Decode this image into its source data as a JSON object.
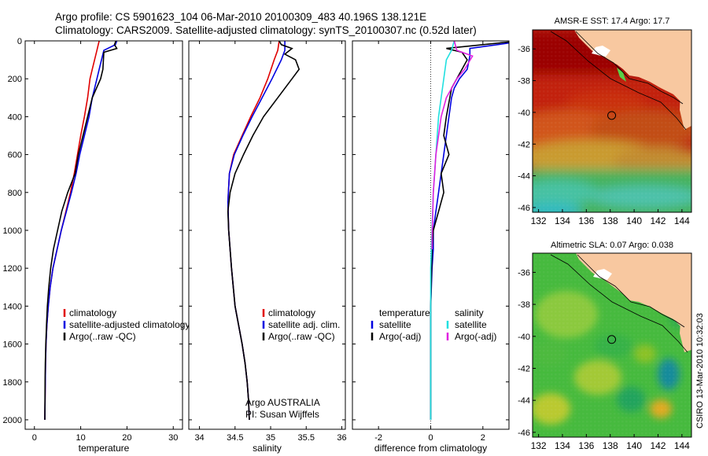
{
  "header": {
    "line1": "Argo profile: CS 5901623_104 06-Mar-2010 20100309_483 40.196S 138.121E",
    "line2": "Climatology: CARS2009. Satellite-adjusted climatology: synTS_20100307.nc (0.52d later)"
  },
  "side_credit": "CSIRO 13-Mar-2010 10:32:03",
  "colors": {
    "climatology": "#e00000",
    "satellite": "#0000e0",
    "argo": "#000000",
    "satellite_salinity": "#20e0e0",
    "argo_salinity": "#e020e0"
  },
  "chart_data": [
    {
      "type": "line",
      "xlabel": "temperature",
      "ylabel": "",
      "xlim": [
        -2,
        32
      ],
      "ylim": [
        0,
        2050
      ],
      "y_inverted": true,
      "xticks": [
        0,
        10,
        20,
        30
      ],
      "yticks": [
        0,
        200,
        400,
        600,
        800,
        1000,
        1200,
        1400,
        1600,
        1800,
        2000
      ],
      "legend": "center-right",
      "series": [
        {
          "name": "climatology",
          "color": "#e00000",
          "x": [
            14.0,
            13.8,
            13.5,
            12.5,
            12.0,
            11.5,
            10.8,
            10.0,
            9.3,
            8.6,
            7.8,
            6.8,
            5.8,
            4.9,
            4.0,
            3.4,
            3.0,
            2.7,
            2.5,
            2.4,
            2.35,
            2.3,
            2.25
          ],
          "y": [
            0,
            20,
            50,
            150,
            200,
            300,
            400,
            500,
            600,
            700,
            800,
            900,
            1000,
            1100,
            1200,
            1300,
            1400,
            1500,
            1600,
            1700,
            1800,
            1900,
            2000
          ]
        },
        {
          "name": "satellite-adjusted climatology",
          "color": "#0000e0",
          "x": [
            17.8,
            17.5,
            15.0,
            14.0,
            13.5,
            12.5,
            11.8,
            10.8,
            9.8,
            9.0,
            8.0,
            6.9,
            5.8,
            4.9,
            4.0,
            3.4,
            3.0,
            2.7,
            2.5,
            2.4,
            2.35,
            2.3,
            2.25
          ],
          "y": [
            0,
            20,
            50,
            150,
            200,
            300,
            400,
            500,
            600,
            700,
            800,
            900,
            1000,
            1100,
            1200,
            1300,
            1400,
            1500,
            1600,
            1700,
            1800,
            1900,
            2000
          ]
        },
        {
          "name": "Argo(..raw -QC)",
          "color": "#000000",
          "x": [
            17.6,
            17.3,
            17.8,
            15.0,
            14.8,
            14.3,
            12.5,
            11.5,
            10.5,
            9.5,
            8.8,
            7.2,
            5.9,
            5.0,
            4.1,
            3.5,
            3.1,
            2.8,
            2.6,
            2.45,
            2.35,
            2.3,
            2.25
          ],
          "y": [
            0,
            20,
            40,
            60,
            150,
            200,
            300,
            400,
            500,
            600,
            700,
            800,
            900,
            1000,
            1100,
            1200,
            1300,
            1400,
            1500,
            1600,
            1700,
            1800,
            2000
          ]
        }
      ]
    },
    {
      "type": "line",
      "xlabel": "salinity",
      "ylabel": "",
      "xlim": [
        33.85,
        36.05
      ],
      "ylim": [
        0,
        2050
      ],
      "y_inverted": true,
      "xticks": [
        34,
        34.5,
        35,
        35.5,
        36
      ],
      "xtick_labels": [
        "34",
        "34.5",
        "35",
        "35.5",
        "36"
      ],
      "legend": "center-right",
      "annotation": [
        "Argo AUSTRALIA",
        "PI: Susan Wijffels"
      ],
      "series": [
        {
          "name": "climatology",
          "color": "#e00000",
          "x": [
            35.12,
            35.1,
            35.05,
            34.96,
            34.85,
            34.72,
            34.6,
            34.48,
            34.42,
            34.4,
            34.41,
            34.45,
            34.5,
            34.55,
            34.6,
            34.64,
            34.67,
            34.69,
            34.7
          ],
          "y": [
            0,
            50,
            100,
            200,
            300,
            400,
            500,
            600,
            700,
            850,
            1000,
            1200,
            1400,
            1500,
            1600,
            1700,
            1800,
            1900,
            2000
          ]
        },
        {
          "name": "satellite adj. clim.",
          "color": "#0000e0",
          "x": [
            35.2,
            35.2,
            35.15,
            35.02,
            34.88,
            34.74,
            34.61,
            34.49,
            34.42,
            34.4,
            34.41,
            34.45,
            34.5,
            34.55,
            34.6,
            34.64,
            34.67,
            34.69,
            34.7
          ],
          "y": [
            0,
            50,
            100,
            200,
            300,
            400,
            500,
            600,
            700,
            850,
            1000,
            1200,
            1400,
            1500,
            1600,
            1700,
            1800,
            1900,
            2000
          ]
        },
        {
          "name": "Argo(..raw -QC)",
          "color": "#000000",
          "x": [
            35.12,
            35.15,
            35.3,
            35.2,
            35.35,
            35.4,
            35.3,
            35.1,
            34.9,
            34.75,
            34.62,
            34.5,
            34.43,
            34.4,
            34.41,
            34.45,
            34.5,
            34.55,
            34.6,
            34.64,
            34.67,
            34.69,
            34.7
          ],
          "y": [
            0,
            20,
            40,
            70,
            100,
            150,
            200,
            300,
            400,
            500,
            600,
            700,
            800,
            900,
            1000,
            1200,
            1400,
            1500,
            1600,
            1700,
            1800,
            1900,
            2000
          ]
        }
      ]
    },
    {
      "type": "line",
      "xlabel": "difference from climatology",
      "ylabel": "",
      "xlim": [
        -3.0,
        3.0
      ],
      "ylim": [
        0,
        2050
      ],
      "y_inverted": true,
      "xticks": [
        -2,
        0,
        2
      ],
      "legend": "center-right",
      "legend_groups": [
        {
          "title": "temperature",
          "entries": [
            "satellite",
            "Argo(-adj)"
          ]
        },
        {
          "title": "salinity",
          "entries": [
            "satellite",
            "Argo(-adj)"
          ]
        }
      ],
      "series": [
        {
          "name": "satellite",
          "group": "temperature",
          "color": "#0000e0",
          "x": [
            3.6,
            1.5,
            1.5,
            1.4,
            1.1,
            0.9,
            0.8,
            0.6,
            0.4,
            0.3,
            0.2,
            0.1,
            0.1,
            0.05,
            0,
            0,
            0
          ],
          "y": [
            0,
            40,
            80,
            150,
            200,
            250,
            300,
            500,
            700,
            800,
            900,
            1000,
            1100,
            1200,
            1400,
            1700,
            2000
          ]
        },
        {
          "name": "Argo(-adj)",
          "group": "temperature",
          "color": "#000000",
          "x": [
            3.4,
            0.6,
            1.2,
            1.4,
            1.2,
            0.8,
            0.6,
            0.5,
            0.7,
            0.4,
            0.5,
            0.3,
            0.1,
            0.05,
            0,
            0
          ],
          "y": [
            0,
            40,
            60,
            100,
            150,
            250,
            400,
            500,
            600,
            700,
            800,
            900,
            1000,
            1100,
            1400,
            2000
          ]
        },
        {
          "name": "satellite",
          "group": "salinity",
          "color": "#20e0e0",
          "x": [
            0.9,
            0.8,
            0.6,
            0.5,
            0.4,
            0.3,
            0.2,
            0.1,
            0.05,
            0,
            0,
            0
          ],
          "y": [
            0,
            50,
            100,
            200,
            300,
            400,
            600,
            800,
            1000,
            1200,
            1600,
            2000
          ]
        },
        {
          "name": "Argo(-adj)",
          "group": "salinity",
          "color": "#e020e0",
          "x": [
            0.9,
            1.0,
            1.6,
            1.3,
            1.0,
            0.6,
            0.4,
            0.3,
            0.2,
            0.15,
            0.1,
            0.08,
            0.06,
            0.05
          ],
          "y": [
            0,
            50,
            80,
            150,
            200,
            300,
            400,
            500,
            600,
            700,
            800,
            900,
            1000,
            1100
          ]
        }
      ]
    },
    {
      "type": "heatmap",
      "title": "AMSR-E SST: 17.4 Argo: 17.7",
      "xlim": [
        131.5,
        144.8
      ],
      "ylim": [
        -46.3,
        -34.8
      ],
      "xticks": [
        132,
        134,
        136,
        138,
        140,
        142,
        144
      ],
      "yticks": [
        -36,
        -38,
        -40,
        -42,
        -44,
        -46
      ],
      "marker": {
        "lon": 138.121,
        "lat": -40.196
      }
    },
    {
      "type": "heatmap",
      "title": "Altimetric SLA: 0.07 Argo: 0.038",
      "xlim": [
        131.5,
        144.8
      ],
      "ylim": [
        -46.3,
        -34.8
      ],
      "xticks": [
        132,
        134,
        136,
        138,
        140,
        142,
        144
      ],
      "yticks": [
        -36,
        -38,
        -40,
        -42,
        -44,
        -46
      ],
      "marker": {
        "lon": 138.121,
        "lat": -40.196
      }
    }
  ]
}
